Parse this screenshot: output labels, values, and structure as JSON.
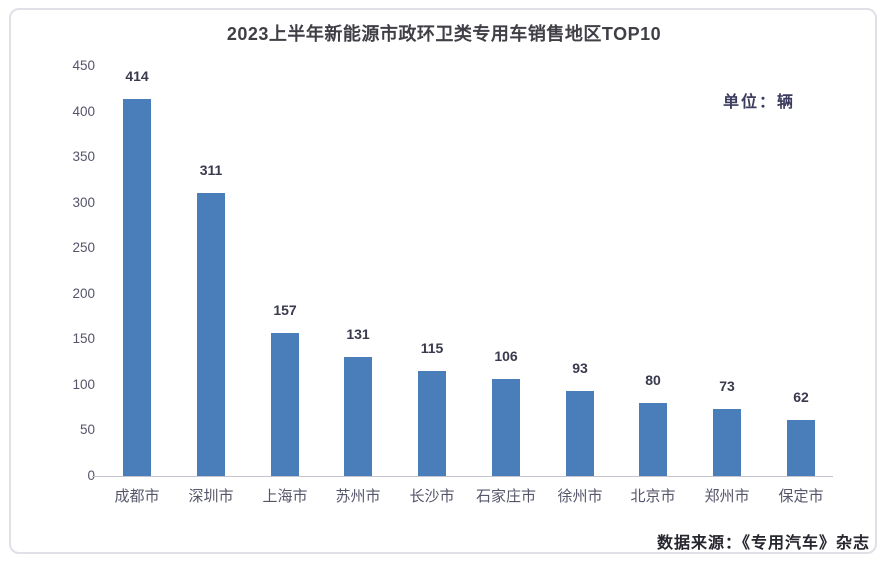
{
  "chart_data": {
    "type": "bar",
    "title": "2023上半年新能源市政环卫类专用车销售地区TOP10",
    "unit_label": "单位：辆",
    "categories": [
      "成都市",
      "深圳市",
      "上海市",
      "苏州市",
      "长沙市",
      "石家庄市",
      "徐州市",
      "北京市",
      "郑州市",
      "保定市"
    ],
    "values": [
      414,
      311,
      157,
      131,
      115,
      106,
      93,
      80,
      73,
      62
    ],
    "xlabel": "",
    "ylabel": "",
    "ylim": [
      0,
      450
    ],
    "yticks": [
      0,
      50,
      100,
      150,
      200,
      250,
      300,
      350,
      400,
      450
    ],
    "grid": false,
    "legend": "none",
    "bar_color": "#4a7ebb",
    "source_note": "数据来源：《专用汽车》杂志"
  }
}
